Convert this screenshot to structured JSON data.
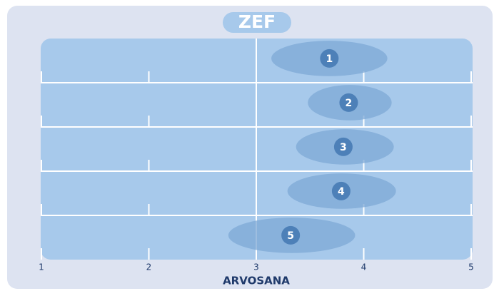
{
  "chart_data": {
    "type": "range",
    "title": "ZEF",
    "xlabel": "ARVOSANA",
    "categories": [
      "1",
      "2",
      "3",
      "4",
      "5"
    ],
    "values": [
      3.68,
      3.86,
      3.81,
      3.79,
      3.32
    ],
    "low": [
      3.14,
      3.48,
      3.37,
      3.29,
      2.74
    ],
    "high": [
      4.22,
      4.26,
      4.28,
      4.3,
      3.92
    ],
    "xlim": [
      1,
      5
    ],
    "xticks": [
      1,
      2,
      3,
      4,
      5
    ],
    "band_color": "#a7c9eb",
    "range_color": "#7ea8d6",
    "marker_color": "#4d80b8"
  }
}
